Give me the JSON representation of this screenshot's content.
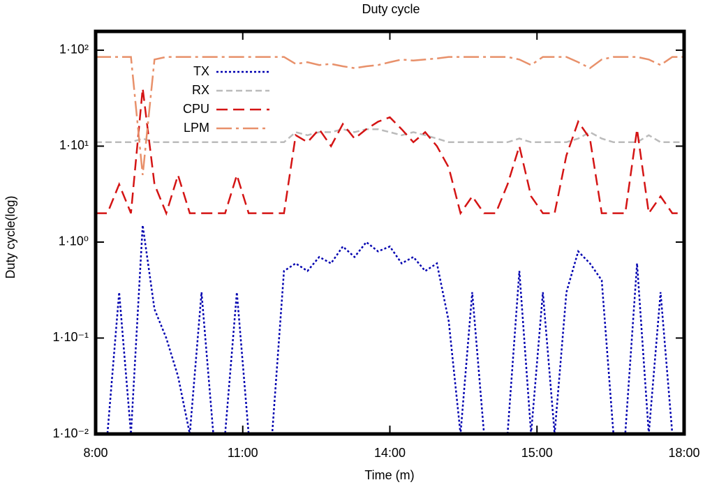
{
  "chart_data": {
    "type": "line",
    "title": "Duty cycle",
    "xlabel": "Time (m)",
    "ylabel": "Duty cycle(log)",
    "ylog": true,
    "legend": "upper left",
    "xlim": [
      0,
      100
    ],
    "xticks": [
      {
        "value": 0,
        "label": "8:00"
      },
      {
        "value": 25,
        "label": "11:00"
      },
      {
        "value": 50,
        "label": "14:00"
      },
      {
        "value": 75,
        "label": "15:00"
      },
      {
        "value": 100,
        "label": "18:00"
      }
    ],
    "ylim": [
      0.01,
      157
    ],
    "yticks": [
      {
        "value": 0.01,
        "label": "1·10⁻²"
      },
      {
        "value": 0.1,
        "label": "1·10⁻¹"
      },
      {
        "value": 1,
        "label": "1·10⁰"
      },
      {
        "value": 10,
        "label": "1·10¹"
      },
      {
        "value": 100,
        "label": "1·10²"
      }
    ],
    "x": [
      0,
      2,
      4,
      6,
      8,
      10,
      12,
      14,
      16,
      18,
      20,
      22,
      24,
      26,
      28,
      30,
      32,
      34,
      36,
      38,
      40,
      42,
      44,
      46,
      48,
      50,
      52,
      54,
      56,
      58,
      60,
      62,
      64,
      66,
      68,
      70,
      72,
      74,
      76,
      78,
      80,
      82,
      84,
      86,
      88,
      90,
      92,
      94,
      96,
      98,
      100
    ],
    "series": [
      {
        "name": "TX",
        "color": "#0000b0",
        "dash": "3,3",
        "values": [
          0.01,
          0.01,
          0.3,
          0.01,
          1.5,
          0.2,
          0.1,
          0.04,
          0.01,
          0.3,
          0.01,
          0.01,
          0.3,
          0.01,
          0.01,
          0.01,
          0.5,
          0.6,
          0.5,
          0.7,
          0.6,
          0.9,
          0.7,
          1.0,
          0.8,
          0.9,
          0.6,
          0.7,
          0.5,
          0.6,
          0.15,
          0.01,
          0.3,
          0.01,
          0.01,
          0.01,
          0.5,
          0.01,
          0.3,
          0.01,
          0.3,
          0.8,
          0.6,
          0.4,
          0.01,
          0.01,
          0.6,
          0.01,
          0.3,
          0.01,
          0.01
        ]
      },
      {
        "name": "RX",
        "color": "#bbbbbb",
        "dash": "9,5",
        "values": [
          11,
          11,
          11,
          11,
          12,
          11,
          11,
          11,
          11,
          11,
          11,
          11,
          11,
          11,
          11,
          11,
          11,
          14,
          13,
          14,
          14,
          15,
          14,
          15,
          15,
          14,
          13,
          14,
          13,
          12,
          11,
          11,
          11,
          11,
          11,
          11,
          12,
          11,
          11,
          11,
          11,
          12,
          14,
          12,
          11,
          11,
          11,
          13,
          11,
          11,
          11
        ]
      },
      {
        "name": "CPU",
        "color": "#d41414",
        "dash": "16,8",
        "values": [
          2,
          2,
          4,
          2,
          40,
          4,
          2,
          5,
          2,
          2,
          2,
          2,
          5,
          2,
          2,
          2,
          2,
          13,
          11,
          15,
          10,
          17,
          12,
          15,
          18,
          20,
          15,
          11,
          14,
          10,
          6,
          2,
          3,
          2,
          2,
          4,
          10,
          3,
          2,
          2,
          8,
          18,
          12,
          2,
          2,
          2,
          15,
          2,
          3,
          2,
          2
        ]
      },
      {
        "name": "LPM",
        "color": "#e8906a",
        "dash": "22,6,4,6",
        "values": [
          85,
          85,
          85,
          85,
          5,
          80,
          85,
          85,
          85,
          85,
          85,
          85,
          85,
          85,
          85,
          85,
          85,
          72,
          75,
          70,
          72,
          68,
          65,
          68,
          70,
          75,
          80,
          78,
          80,
          82,
          85,
          85,
          85,
          85,
          85,
          85,
          80,
          70,
          85,
          85,
          85,
          75,
          65,
          80,
          85,
          85,
          85,
          80,
          70,
          85,
          85
        ]
      }
    ]
  }
}
